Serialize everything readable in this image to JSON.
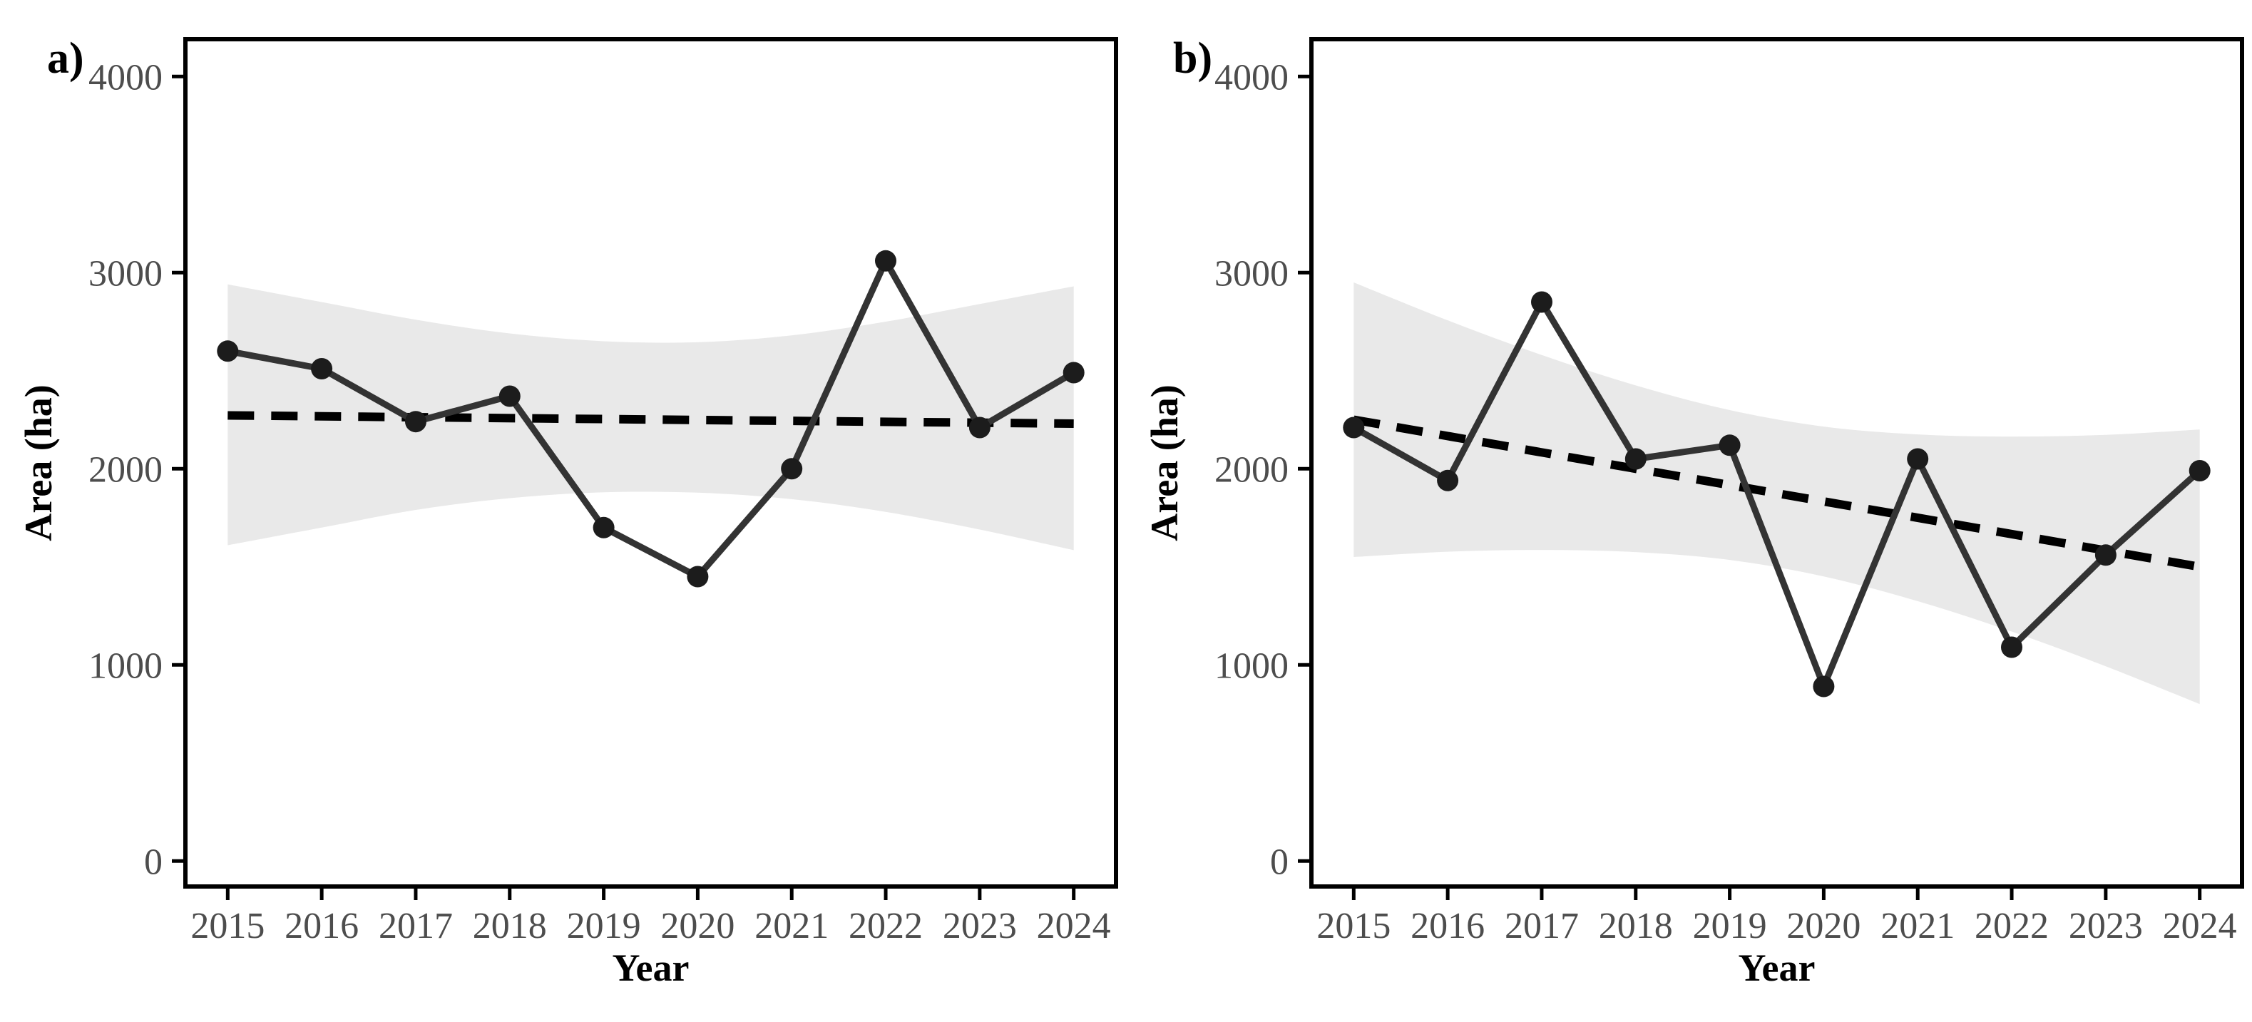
{
  "figure": {
    "background": "#ffffff",
    "description": "Two-panel line chart of annual area (ha) 2015-2024 with dashed linear trend lines and gray confidence bands"
  },
  "style": {
    "band_color": "#e9e9e9",
    "line_color": "#333333",
    "point_color": "#1c1c1c",
    "trend_color": "#000000",
    "axis_color": "#000000",
    "tick_label_color": "#4d4d4d",
    "title_color": "#000000",
    "background": "#ffffff"
  },
  "chart_data": [
    {
      "type": "line",
      "panel_label": "a)",
      "xlabel": "Year",
      "ylabel": "Area (ha)",
      "x": [
        2015,
        2016,
        2017,
        2018,
        2019,
        2020,
        2021,
        2022,
        2023,
        2024
      ],
      "series": [
        {
          "name": "Area (ha)",
          "values": [
            2600,
            2510,
            2240,
            2370,
            1700,
            1450,
            2000,
            3060,
            2210,
            2490
          ]
        }
      ],
      "trend_line": {
        "style": "dashed",
        "x": [
          2015,
          2024
        ],
        "y": [
          2272,
          2230
        ]
      },
      "ci_band": {
        "lo": [
          1610,
          1700,
          1790,
          1850,
          1880,
          1878,
          1845,
          1780,
          1690,
          1585
        ],
        "hi": [
          2940,
          2850,
          2760,
          2690,
          2650,
          2645,
          2680,
          2750,
          2840,
          2930
        ]
      },
      "xlim": [
        2014.55,
        2024.45
      ],
      "ylim": [
        -130,
        4190
      ],
      "xticks": [
        2015,
        2016,
        2017,
        2018,
        2019,
        2020,
        2021,
        2022,
        2023,
        2024
      ],
      "yticks": [
        0,
        1000,
        2000,
        3000,
        4000
      ],
      "grid": false,
      "legend": "none"
    },
    {
      "type": "line",
      "panel_label": "b)",
      "xlabel": "Year",
      "ylabel": "Area (ha)",
      "x": [
        2015,
        2016,
        2017,
        2018,
        2019,
        2020,
        2021,
        2022,
        2023,
        2024
      ],
      "series": [
        {
          "name": "Area (ha)",
          "values": [
            2210,
            1940,
            2850,
            2050,
            2120,
            890,
            2050,
            1090,
            1560,
            1990
          ]
        }
      ],
      "trend_line": {
        "style": "dashed",
        "x": [
          2015,
          2024
        ],
        "y": [
          2250,
          1500
        ]
      },
      "ci_band": {
        "lo": [
          1550,
          1577,
          1586,
          1575,
          1535,
          1451,
          1325,
          1170,
          993,
          800
        ],
        "hi": [
          2950,
          2757,
          2580,
          2425,
          2299,
          2215,
          2175,
          2164,
          2173,
          2200
        ]
      },
      "xlim": [
        2014.55,
        2024.45
      ],
      "ylim": [
        -130,
        4190
      ],
      "xticks": [
        2015,
        2016,
        2017,
        2018,
        2019,
        2020,
        2021,
        2022,
        2023,
        2024
      ],
      "yticks": [
        0,
        1000,
        2000,
        3000,
        4000
      ],
      "grid": false,
      "legend": "none"
    }
  ]
}
